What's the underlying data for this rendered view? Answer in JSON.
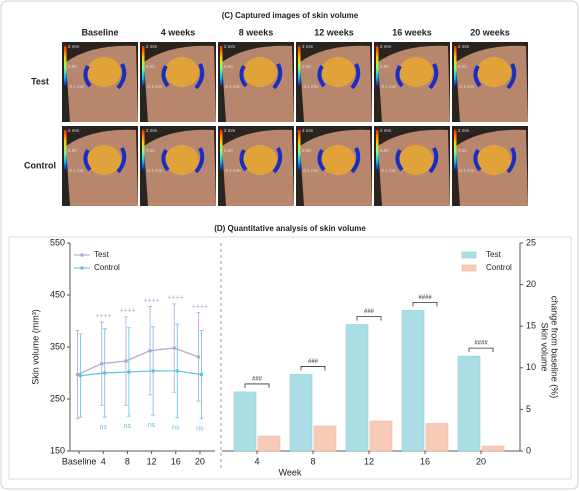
{
  "panel_c": {
    "title": "(C) Captured images of skin volume",
    "columns": [
      "Baseline",
      "4 weeks",
      "8 weeks",
      "12 weeks",
      "16 weeks",
      "20 weeks"
    ],
    "rows": [
      "Test",
      "Control"
    ],
    "scale_labels": [
      "2 mm",
      "0.00",
      "-0.1 mm"
    ]
  },
  "panel_d": {
    "title": "(D) Quantitative analysis of skin volume"
  },
  "chart_data": [
    {
      "type": "line",
      "ylabel": "Skin volume (mm³)",
      "categories": [
        "Baseline",
        "4",
        "8",
        "12",
        "16",
        "20"
      ],
      "ylim": [
        150,
        550
      ],
      "yticks": [
        150,
        250,
        350,
        450,
        550
      ],
      "legend": "top-left",
      "series": [
        {
          "name": "Test",
          "color": "#b7a3d6",
          "values": [
            297,
            318,
            323,
            343,
            348,
            331
          ],
          "errors": [
            85,
            80,
            85,
            85,
            85,
            85
          ],
          "annotations": [
            null,
            "++++",
            "++++",
            "++++",
            "++++",
            "++++"
          ]
        },
        {
          "name": "Control",
          "color": "#5fc3e0",
          "values": [
            295,
            300,
            302,
            304,
            304,
            297
          ],
          "errors": [
            80,
            85,
            85,
            85,
            90,
            85
          ],
          "annotations": [
            null,
            "ns",
            "ns",
            "ns",
            "ns",
            "ns"
          ]
        }
      ]
    },
    {
      "type": "bar",
      "xlabel": "Week",
      "ylabel": [
        "Skin volume",
        "change from baseline (%)"
      ],
      "categories": [
        "4",
        "8",
        "12",
        "16",
        "20"
      ],
      "ylim": [
        0,
        25
      ],
      "yticks": [
        0,
        5,
        10,
        15,
        20,
        25
      ],
      "legend": "top-right",
      "annotations": [
        "###",
        "###",
        "###",
        "####",
        "####"
      ],
      "series": [
        {
          "name": "Test",
          "color": "#abdde4",
          "values": [
            7.1,
            9.2,
            15.2,
            16.9,
            11.4
          ]
        },
        {
          "name": "Control",
          "color": "#f8cbb8",
          "values": [
            1.8,
            3.0,
            3.6,
            3.3,
            0.6
          ]
        }
      ]
    }
  ]
}
